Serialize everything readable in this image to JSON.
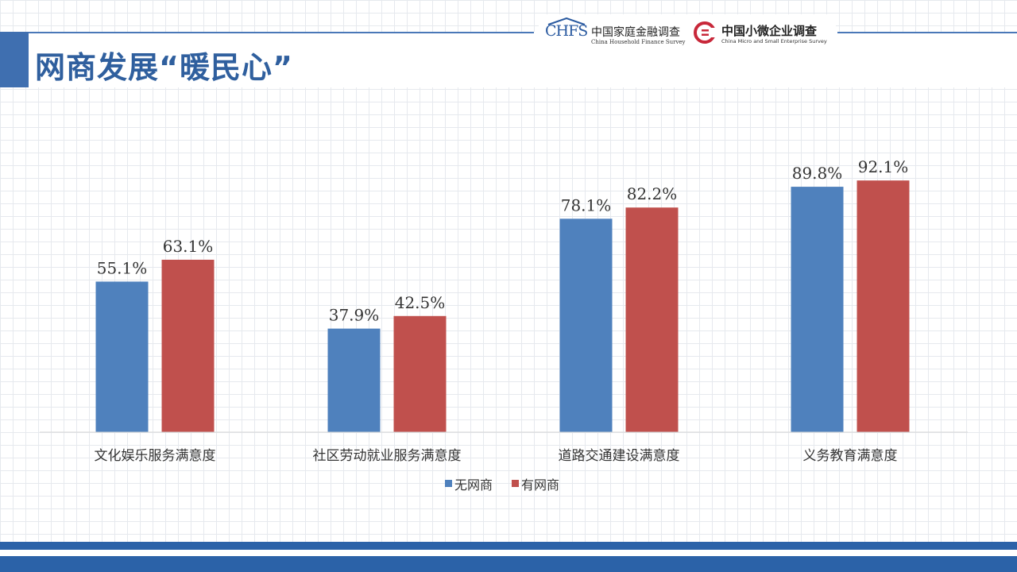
{
  "header": {
    "title": "网商发展“暖民心”"
  },
  "logos": {
    "chfs": {
      "mark": "CHFS",
      "name_cn": "中国家庭金融调查",
      "name_en": "China Household Finance Survey",
      "icon": "chfs-house-icon"
    },
    "cmes": {
      "name_cn": "中国小微企业调查",
      "name_en": "China Micro and Small Enterprise Survey",
      "icon": "cmes-c-icon"
    }
  },
  "colors": {
    "series_without": "#4f81bd",
    "series_with": "#c0504d",
    "title": "#2f5f9e",
    "accent": "#3f6fb0"
  },
  "chart_data": {
    "type": "bar",
    "title": "",
    "xlabel": "",
    "ylabel": "",
    "ylim": [
      0,
      100
    ],
    "grid": false,
    "legend": "bottom-center",
    "categories": [
      "文化娱乐服务满意度",
      "社区劳动就业服务满意度",
      "道路交通建设满意度",
      "义务教育满意度"
    ],
    "series": [
      {
        "name": "无网商",
        "values": [
          55.1,
          37.9,
          78.1,
          89.8
        ],
        "labels": [
          "55.1%",
          "37.9%",
          "78.1%",
          "89.8%"
        ]
      },
      {
        "name": "有网商",
        "values": [
          63.1,
          42.5,
          82.2,
          92.1
        ],
        "labels": [
          "63.1%",
          "42.5%",
          "82.2%",
          "92.1%"
        ]
      }
    ]
  }
}
